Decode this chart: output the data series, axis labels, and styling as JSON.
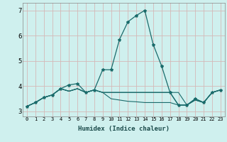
{
  "xlabel": "Humidex (Indice chaleur)",
  "background_color": "#cff0ee",
  "grid_color": "#d4b8b8",
  "line_color": "#1a6b6b",
  "xlim": [
    -0.5,
    23.5
  ],
  "ylim": [
    2.8,
    7.3
  ],
  "yticks": [
    3,
    4,
    5,
    6,
    7
  ],
  "xticks": [
    0,
    1,
    2,
    3,
    4,
    5,
    6,
    7,
    8,
    9,
    10,
    11,
    12,
    13,
    14,
    15,
    16,
    17,
    18,
    19,
    20,
    21,
    22,
    23
  ],
  "series": [
    [
      3.2,
      3.35,
      3.55,
      3.65,
      3.9,
      4.05,
      4.1,
      3.75,
      3.85,
      4.65,
      4.65,
      5.85,
      6.55,
      6.8,
      7.0,
      5.65,
      4.8,
      3.75,
      3.25,
      3.25,
      3.5,
      3.35,
      3.75,
      3.85
    ],
    [
      3.2,
      3.35,
      3.55,
      3.65,
      3.9,
      3.8,
      3.9,
      3.75,
      3.85,
      3.75,
      3.75,
      3.75,
      3.75,
      3.75,
      3.75,
      3.75,
      3.75,
      3.75,
      3.25,
      3.25,
      3.5,
      3.35,
      3.75,
      3.85
    ],
    [
      3.2,
      3.35,
      3.55,
      3.65,
      3.9,
      3.8,
      3.9,
      3.75,
      3.85,
      3.75,
      3.5,
      3.45,
      3.4,
      3.38,
      3.35,
      3.35,
      3.35,
      3.35,
      3.25,
      3.25,
      3.45,
      3.35,
      3.75,
      3.85
    ],
    [
      3.2,
      3.35,
      3.55,
      3.65,
      3.9,
      3.8,
      3.9,
      3.75,
      3.85,
      3.75,
      3.75,
      3.75,
      3.75,
      3.75,
      3.75,
      3.75,
      3.75,
      3.75,
      3.75,
      3.25,
      3.45,
      3.35,
      3.75,
      3.85
    ]
  ]
}
